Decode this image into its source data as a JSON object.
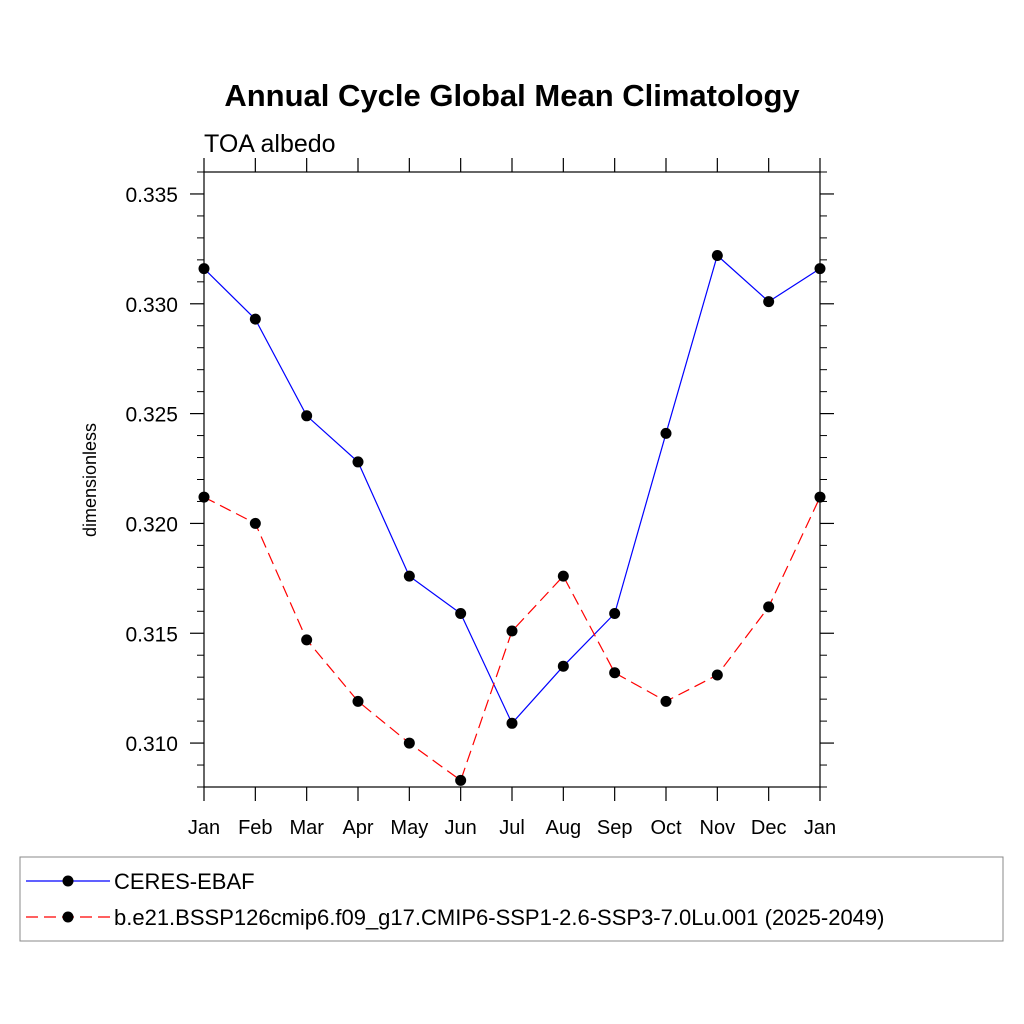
{
  "chart_data": {
    "type": "line",
    "title": "Annual Cycle Global Mean Climatology",
    "subtitle": "TOA albedo",
    "xlabel": "",
    "ylabel": "dimensionless",
    "categories": [
      "Jan",
      "Feb",
      "Mar",
      "Apr",
      "May",
      "Jun",
      "Jul",
      "Aug",
      "Sep",
      "Oct",
      "Nov",
      "Dec",
      "Jan"
    ],
    "yticks": [
      "0.310",
      "0.315",
      "0.320",
      "0.325",
      "0.330",
      "0.335"
    ],
    "ylim": [
      0.308,
      0.336
    ],
    "grid": false,
    "legend_position": "bottom",
    "series": [
      {
        "name": "CERES-EBAF",
        "color": "#0000ff",
        "line_style": "solid",
        "marker": "filled-circle",
        "values": [
          0.3316,
          0.3293,
          0.3249,
          0.3228,
          0.3176,
          0.3159,
          0.3109,
          0.3135,
          0.3159,
          0.3241,
          0.3322,
          0.3301,
          0.3316
        ]
      },
      {
        "name": "b.e21.BSSP126cmip6.f09_g17.CMIP6-SSP1-2.6-SSP3-7.0Lu.001 (2025-2049)",
        "color": "#ff0000",
        "line_style": "dashed",
        "marker": "filled-circle",
        "values": [
          0.3212,
          0.32,
          0.3147,
          0.3119,
          0.31,
          0.3083,
          0.3151,
          0.3176,
          0.3132,
          0.3119,
          0.3131,
          0.3162,
          0.3212
        ]
      }
    ]
  }
}
